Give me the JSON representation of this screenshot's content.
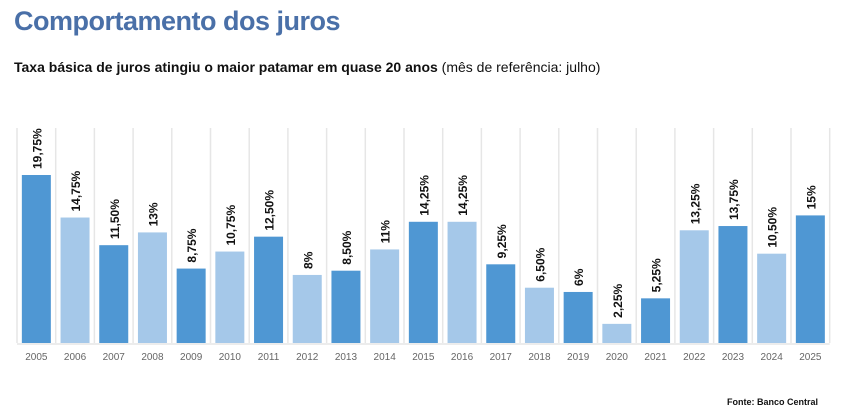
{
  "title": "Comportamento dos juros",
  "subtitle_bold": "Taxa básica de juros atingiu o maior patamar em quase 20 anos",
  "subtitle_note": "(mês de referência: julho)",
  "source": "Fonte: Banco Central",
  "colors": {
    "dark": "#4f97d3",
    "light": "#a5c8e9",
    "grid": "#e6e6e6",
    "title": "#4a70a8"
  },
  "chart_data": {
    "type": "bar",
    "title": "Taxa básica de juros atingiu o maior patamar em quase 20 anos",
    "xlabel": "",
    "ylabel": "",
    "ylim": [
      0,
      20
    ],
    "categories": [
      "2005",
      "2006",
      "2007",
      "2008",
      "2009",
      "2010",
      "2011",
      "2012",
      "2013",
      "2014",
      "2015",
      "2016",
      "2017",
      "2018",
      "2019",
      "2020",
      "2021",
      "2022",
      "2023",
      "2024",
      "2025"
    ],
    "values": [
      19.75,
      14.75,
      11.5,
      13,
      8.75,
      10.75,
      12.5,
      8,
      8.5,
      11,
      14.25,
      14.25,
      9.25,
      6.5,
      6,
      2.25,
      5.25,
      13.25,
      13.75,
      10.5,
      15
    ],
    "labels": [
      "19,75%",
      "14,75%",
      "11,50%",
      "13%",
      "8,75%",
      "10,75%",
      "12,50%",
      "8%",
      "8,50%",
      "11%",
      "14,25%",
      "14,25%",
      "9,25%",
      "6,50%",
      "6%",
      "2,25%",
      "5,25%",
      "13,25%",
      "13,75%",
      "10,50%",
      "15%"
    ]
  }
}
